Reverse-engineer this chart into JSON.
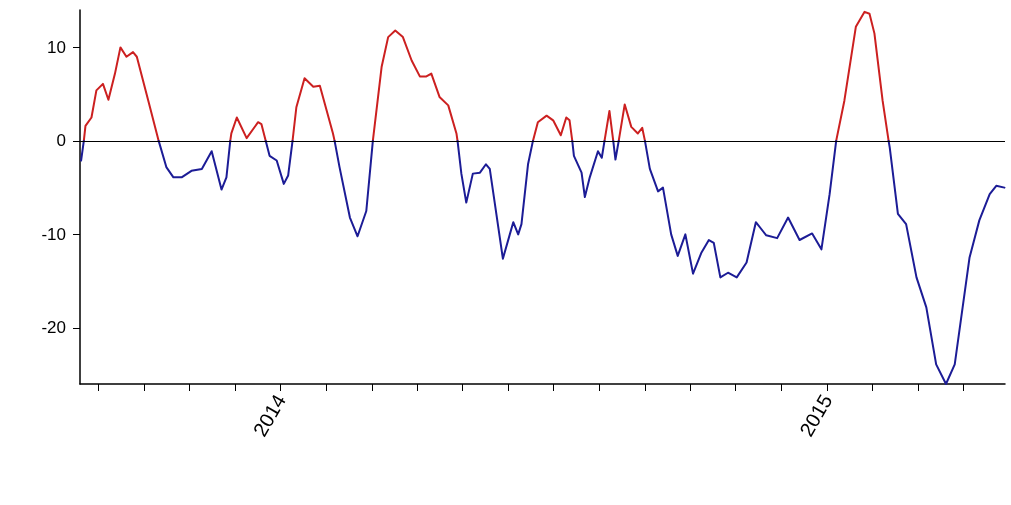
{
  "chart_data": {
    "type": "line",
    "x": [
      2013.635,
      2013.64,
      2013.643,
      2013.654,
      2013.663,
      2013.675,
      2013.685,
      2013.697,
      2013.707,
      2013.718,
      2013.73,
      2013.737,
      2013.758,
      2013.773,
      2013.777,
      2013.791,
      2013.804,
      2013.819,
      2013.837,
      2013.856,
      2013.874,
      2013.892,
      2013.901,
      2013.908,
      2013.91,
      2013.92,
      2013.938,
      2013.959,
      2013.965,
      2013.973,
      2013.98,
      2013.993,
      2014.006,
      2014.014,
      2014.022,
      2014.029,
      2014.044,
      2014.06,
      2014.072,
      2014.096,
      2014.099,
      2014.108,
      2014.127,
      2014.141,
      2014.157,
      2014.169,
      2014.185,
      2014.197,
      2014.21,
      2014.224,
      2014.24,
      2014.255,
      2014.267,
      2014.276,
      2014.291,
      2014.307,
      2014.322,
      2014.324,
      2014.331,
      2014.34,
      2014.352,
      2014.365,
      2014.376,
      2014.383,
      2014.407,
      2014.426,
      2014.435,
      2014.441,
      2014.453,
      2014.462,
      2014.471,
      2014.487,
      2014.499,
      2014.513,
      2014.523,
      2014.529,
      2014.534,
      2014.537,
      2014.551,
      2014.557,
      2014.566,
      2014.581,
      2014.588,
      2014.593,
      2014.602,
      2014.609,
      2014.613,
      2014.619,
      2014.63,
      2014.642,
      2014.654,
      2014.662,
      2014.667,
      2014.676,
      2014.691,
      2014.7,
      2014.715,
      2014.727,
      2014.741,
      2014.755,
      2014.77,
      2014.784,
      2014.793,
      2014.805,
      2014.819,
      2014.835,
      2014.853,
      2014.87,
      2014.889,
      2014.909,
      2014.929,
      2014.95,
      2014.973,
      2014.99,
      2015.005,
      2015.017,
      2015.032,
      2015.053,
      2015.069,
      2015.078,
      2015.087,
      2015.102,
      2015.113,
      2015.115,
      2015.13,
      2015.145,
      2015.164,
      2015.182,
      2015.2,
      2015.218,
      2015.234,
      2015.261,
      2015.279,
      2015.298,
      2015.31,
      2015.325
    ],
    "series": [
      {
        "color": "#cc2020",
        "values": [
          null,
          0,
          1.6,
          2.5,
          5.4,
          6.1,
          4.4,
          7.2,
          10.0,
          9.0,
          9.5,
          9.0,
          4.3,
          0.9,
          0,
          null,
          null,
          null,
          null,
          null,
          null,
          null,
          null,
          0,
          0.8,
          2.5,
          0.3,
          2.0,
          1.8,
          0,
          null,
          null,
          null,
          null,
          0,
          3.6,
          6.7,
          5.8,
          5.9,
          0.8,
          0,
          null,
          null,
          null,
          null,
          0,
          7.9,
          11.1,
          11.8,
          11.1,
          8.6,
          6.9,
          6.9,
          7.2,
          4.7,
          3.8,
          0.8,
          0,
          null,
          null,
          null,
          null,
          null,
          null,
          null,
          null,
          null,
          null,
          null,
          0,
          2.0,
          2.7,
          2.2,
          0.6,
          2.5,
          2.2,
          0,
          null,
          null,
          null,
          null,
          null,
          null,
          0,
          3.2,
          0,
          null,
          0,
          3.9,
          1.5,
          0.8,
          1.4,
          0,
          null,
          null,
          null,
          null,
          null,
          null,
          null,
          null,
          null,
          null,
          null,
          null,
          null,
          null,
          null,
          null,
          null,
          null,
          null,
          null,
          null,
          null,
          0,
          4.3,
          12.2,
          13.8,
          13.6,
          11.5,
          4.3,
          0,
          null,
          null,
          null,
          null,
          null,
          null,
          null,
          null,
          null,
          null,
          null,
          null,
          null
        ]
      },
      {
        "color": "#1c1c96",
        "values": [
          -2.1,
          0,
          null,
          null,
          null,
          null,
          null,
          null,
          null,
          null,
          null,
          null,
          null,
          null,
          0,
          -2.8,
          -3.9,
          -3.9,
          -3.2,
          -3.0,
          -1.1,
          -5.2,
          -3.9,
          0,
          null,
          null,
          null,
          null,
          null,
          0,
          -1.6,
          -2.1,
          -4.6,
          -3.7,
          0,
          null,
          null,
          null,
          null,
          null,
          0,
          -2.8,
          -8.2,
          -10.2,
          -7.5,
          0,
          null,
          null,
          null,
          null,
          null,
          null,
          null,
          null,
          null,
          null,
          null,
          0,
          -3.5,
          -6.6,
          -3.5,
          -3.4,
          -2.5,
          -3.0,
          -12.6,
          -8.7,
          -10.0,
          -8.9,
          -2.5,
          0,
          null,
          null,
          null,
          null,
          null,
          null,
          0,
          -1.6,
          -3.4,
          -6.0,
          -3.9,
          -1.1,
          -1.8,
          0,
          null,
          0,
          -2.0,
          0,
          null,
          null,
          null,
          null,
          0,
          -3.0,
          -5.4,
          -5.0,
          -10.0,
          -12.3,
          -10.0,
          -14.2,
          -12.0,
          -10.6,
          -10.9,
          -14.6,
          -14.1,
          -14.6,
          -13.0,
          -8.7,
          -10.1,
          -10.4,
          -8.2,
          -10.6,
          -9.9,
          -11.6,
          -5.7,
          0,
          null,
          null,
          null,
          null,
          null,
          null,
          0,
          -0.7,
          -7.8,
          -8.9,
          -14.6,
          -17.8,
          -23.9,
          -26,
          -23.9,
          -12.5,
          -8.5,
          -5.7,
          -4.8,
          -5.0
        ]
      }
    ],
    "xlim": [
      2013.633,
      2015.326
    ],
    "xticks": [
      {
        "value": 2013.667,
        "label": null
      },
      {
        "value": 2013.75,
        "label": null
      },
      {
        "value": 2013.833,
        "label": null
      },
      {
        "value": 2013.917,
        "label": null
      },
      2014,
      {
        "value": 2014.083,
        "label": null
      },
      {
        "value": 2014.167,
        "label": null
      },
      {
        "value": 2014.25,
        "label": null
      },
      {
        "value": 2014.333,
        "label": null
      },
      {
        "value": 2014.417,
        "label": null
      },
      {
        "value": 2014.5,
        "label": null
      },
      {
        "value": 2014.583,
        "label": null
      },
      {
        "value": 2014.667,
        "label": null
      },
      {
        "value": 2014.75,
        "label": null
      },
      {
        "value": 2014.833,
        "label": null
      },
      {
        "value": 2014.917,
        "label": null
      },
      2015,
      {
        "value": 2015.083,
        "label": null
      },
      {
        "value": 2015.167,
        "label": null
      },
      {
        "value": 2015.25,
        "label": null
      }
    ],
    "ylim": [
      -26,
      14
    ],
    "yticks": [
      -20,
      -10,
      0,
      10
    ],
    "ref_lines": [
      {
        "axis": "y",
        "value": 0,
        "color": "#000000"
      }
    ],
    "grid": false,
    "marker": "none",
    "line_style": "solid"
  }
}
